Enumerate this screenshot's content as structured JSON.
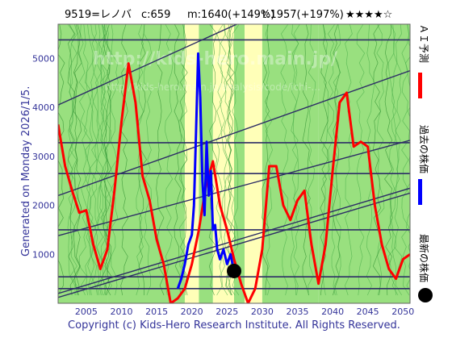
{
  "header": {
    "code_name": "9519=レノバ",
    "current": "c:659",
    "min_info": "m:1640(+149%)",
    "target_info": "t:1957(+197%)",
    "stars": "★★★★☆"
  },
  "side": {
    "generated": "Generated on Monday 2026/1/5.",
    "ai_forecast": "ＡＩ予測",
    "past_price": "過去の株価",
    "latest_price": "最新の株価"
  },
  "footer": {
    "copyright": "Copyright (c) Kids-Hero Research Institute. All Rights Reserved."
  },
  "watermark": {
    "line1": "http://kids-hero.main.jp/",
    "line2": "http://kids-hero.main.jp/analysis/code/ichi-..."
  },
  "colors": {
    "forecast": "#ff0000",
    "past": "#0000ff",
    "latest": "#000000",
    "band_green": "#99e07f",
    "band_yellow": "#ffffb8",
    "band_cyan": "#c8f0e8",
    "grid_line": "#2d2d66",
    "axis_text": "#333399"
  },
  "chart_data": {
    "type": "line",
    "xlim": [
      2001,
      2051
    ],
    "ylim": [
      0,
      5700
    ],
    "x_ticks": [
      2005,
      2010,
      2015,
      2020,
      2025,
      2030,
      2035,
      2040,
      2045,
      2050
    ],
    "y_ticks": [
      1000,
      2000,
      3000,
      4000,
      5000
    ],
    "levels": [
      300,
      540,
      1500,
      2650,
      3280,
      5380
    ],
    "trend_lines": [
      {
        "x": [
          2001,
          2051
        ],
        "y": [
          4050,
          7300
        ]
      },
      {
        "x": [
          2001,
          2051
        ],
        "y": [
          2200,
          4750
        ]
      },
      {
        "x": [
          2001,
          2051
        ],
        "y": [
          1380,
          3330
        ]
      },
      {
        "x": [
          2001,
          2051
        ],
        "y": [
          200,
          2350
        ]
      },
      {
        "x": [
          2001,
          2051
        ],
        "y": [
          120,
          2250
        ]
      }
    ],
    "backgrounds": [
      {
        "from": 2001,
        "to": 2008,
        "color": "green"
      },
      {
        "from": 2008,
        "to": 2019,
        "color": "green"
      },
      {
        "from": 2019,
        "to": 2021,
        "color": "yellow"
      },
      {
        "from": 2021,
        "to": 2023,
        "color": "green"
      },
      {
        "from": 2023,
        "to": 2026,
        "color": "yellow"
      },
      {
        "from": 2026,
        "to": 2027.5,
        "color": "green"
      },
      {
        "from": 2027.5,
        "to": 2030,
        "color": "yellow"
      },
      {
        "from": 2030,
        "to": 2038,
        "color": "green"
      },
      {
        "from": 2038,
        "to": 2051,
        "color": "green"
      }
    ],
    "series": [
      {
        "name": "ＡＩ予測",
        "x": [
          2001,
          2002,
          2003,
          2004,
          2005,
          2006,
          2007,
          2008,
          2009,
          2010,
          2011,
          2012,
          2013,
          2014,
          2015,
          2016,
          2017,
          2018,
          2019,
          2020,
          2021,
          2022,
          2023,
          2024,
          2025,
          2026,
          2027,
          2028,
          2029,
          2030,
          2031,
          2032,
          2033,
          2034,
          2035,
          2036,
          2037,
          2038,
          2039,
          2040,
          2041,
          2042,
          2043,
          2044,
          2045,
          2046,
          2047,
          2048,
          2049,
          2050,
          2051
        ],
        "y": [
          3650,
          2800,
          2300,
          1850,
          1900,
          1200,
          700,
          1100,
          2300,
          3700,
          4900,
          4100,
          2600,
          2100,
          1300,
          800,
          0,
          100,
          300,
          800,
          1500,
          2400,
          2900,
          2000,
          1500,
          900,
          400,
          0,
          300,
          1100,
          2800,
          2800,
          2000,
          1700,
          2100,
          2300,
          1200,
          400,
          1200,
          2700,
          4100,
          4300,
          3200,
          3300,
          3200,
          2000,
          1200,
          700,
          500,
          900,
          1000
        ]
      },
      {
        "name": "過去の株価",
        "x": [
          2018.0,
          2018.5,
          2019.0,
          2019.5,
          2020.0,
          2020.3,
          2020.6,
          2020.9,
          2021.2,
          2021.5,
          2021.8,
          2022.1,
          2022.4,
          2022.7,
          2023.0,
          2023.3,
          2023.6,
          2024.0,
          2024.5,
          2025.0,
          2025.5,
          2026.0
        ],
        "y": [
          300,
          500,
          800,
          1200,
          1400,
          2000,
          3500,
          5100,
          4200,
          2500,
          1800,
          3300,
          2200,
          2700,
          1500,
          1600,
          1100,
          900,
          1100,
          800,
          1000,
          650
        ]
      }
    ],
    "latest_point": {
      "x": 2026.0,
      "y": 659
    }
  }
}
